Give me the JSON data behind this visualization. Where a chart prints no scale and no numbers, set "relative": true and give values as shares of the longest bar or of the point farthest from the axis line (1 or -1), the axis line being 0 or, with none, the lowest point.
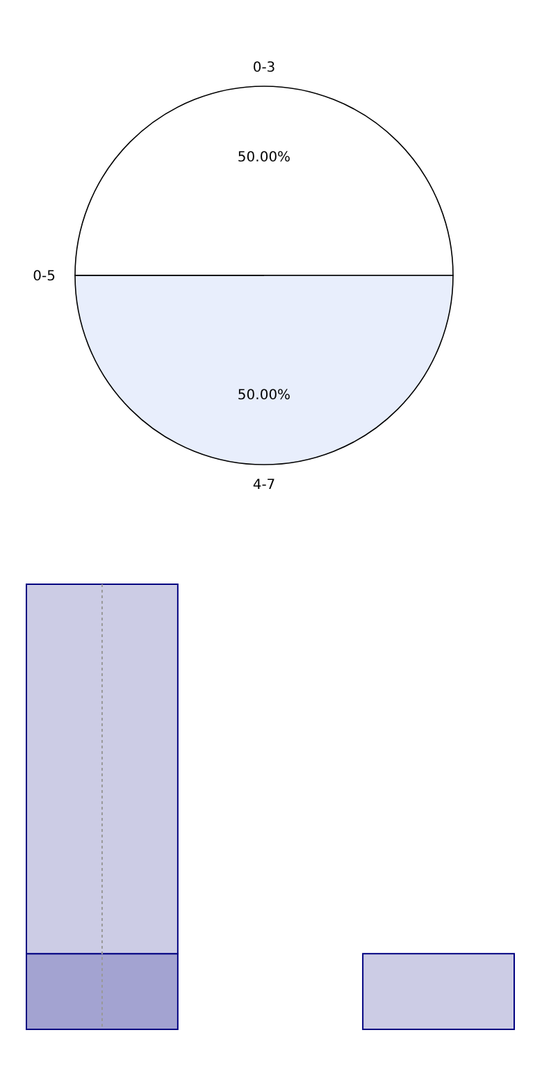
{
  "chart_data": [
    {
      "type": "pie",
      "categories": [
        "0-3",
        "4-7",
        "0-5"
      ],
      "values": [
        50,
        50,
        0
      ],
      "colors": [
        "#ffffff",
        "#e8eefc",
        "#999999"
      ],
      "value_labels": [
        "50.00%",
        "50.00%",
        null
      ]
    },
    {
      "type": "bar",
      "relative": true,
      "stacked": true,
      "categories": [
        null,
        null
      ],
      "series": [
        {
          "color": "#a3a3d1",
          "values": [
            0.17,
            0
          ]
        },
        {
          "color": "#ccccE5",
          "values": [
            0.83,
            0.17
          ]
        }
      ]
    }
  ]
}
